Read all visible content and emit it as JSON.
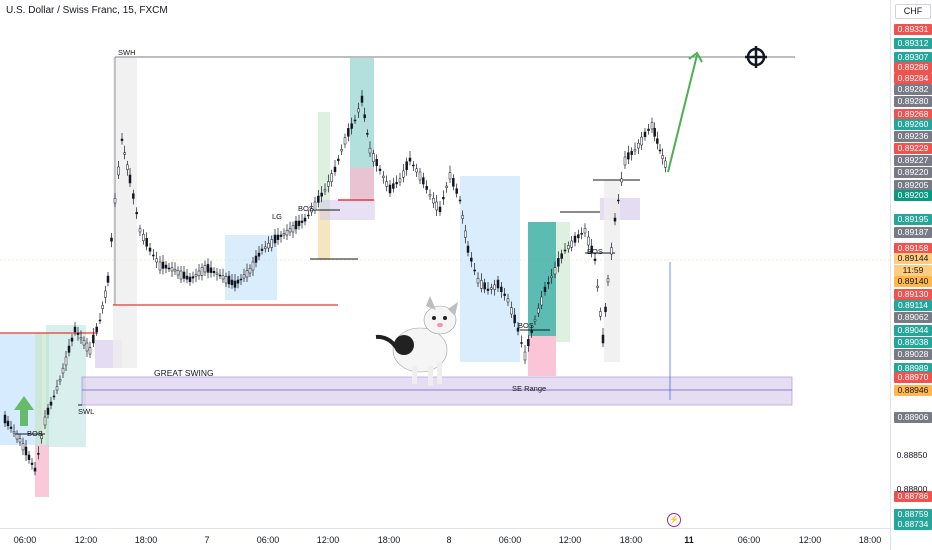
{
  "header": {
    "symbol_title": "U.S. Dollar / Swiss Franc, 15, FXCM"
  },
  "price_axis": {
    "currency_label": "CHF",
    "tags": [
      {
        "value": "0.89331",
        "color": "#ef5350"
      },
      {
        "value": "0.89312",
        "color": "#26a69a"
      },
      {
        "value": "0.89307",
        "color": "#26a69a"
      },
      {
        "value": "0.89286",
        "color": "#ef5350"
      },
      {
        "value": "0.89284",
        "color": "#ef5350"
      },
      {
        "value": "0.89282",
        "color": "#787b86"
      },
      {
        "value": "0.89280",
        "color": "#787b86"
      },
      {
        "value": "0.89268",
        "color": "#ef5350"
      },
      {
        "value": "0.89260",
        "color": "#26a69a"
      },
      {
        "value": "0.89236",
        "color": "#787b86"
      },
      {
        "value": "0.89229",
        "color": "#ef5350"
      },
      {
        "value": "0.89227",
        "color": "#787b86"
      },
      {
        "value": "0.89220",
        "color": "#787b86"
      },
      {
        "value": "0.89205",
        "color": "#787b86"
      },
      {
        "value": "0.89203",
        "color": "#089981"
      },
      {
        "value": "0.89195",
        "color": "#26a69a"
      },
      {
        "value": "0.89187",
        "color": "#787b86"
      },
      {
        "value": "0.89158",
        "color": "#ef5350"
      },
      {
        "value": "0.89144",
        "color": "#ffcc80"
      },
      {
        "value": "11:59",
        "color": "#ffcc80"
      },
      {
        "value": "0.89140",
        "color": "#ffb74d"
      },
      {
        "value": "0.89130",
        "color": "#ef5350"
      },
      {
        "value": "0.89114",
        "color": "#26a69a"
      },
      {
        "value": "0.89062",
        "color": "#787b86"
      },
      {
        "value": "0.89044",
        "color": "#26a69a"
      },
      {
        "value": "0.89038",
        "color": "#26a69a"
      },
      {
        "value": "0.89028",
        "color": "#787b86"
      },
      {
        "value": "0.88989",
        "color": "#26a69a"
      },
      {
        "value": "0.88970",
        "color": "#ef5350"
      },
      {
        "value": "0.88946",
        "color": "#ffb74d"
      },
      {
        "value": "0.88906",
        "color": "#787b86"
      },
      {
        "value": "0.88786",
        "color": "#ef5350"
      },
      {
        "value": "0.88759",
        "color": "#26a69a"
      },
      {
        "value": "0.88734",
        "color": "#26a69a"
      }
    ],
    "ticks": [
      "0.88850",
      "0.88800"
    ]
  },
  "time_axis": {
    "labels": [
      "06:00",
      "12:00",
      "18:00",
      "7",
      "06:00",
      "12:00",
      "18:00",
      "8",
      "06:00",
      "12:00",
      "18:00",
      "11",
      "06:00",
      "12:00",
      "18:00"
    ]
  },
  "annotations": {
    "swh": "SWH",
    "swl": "SWL",
    "lg": "LG",
    "bos_left": "BOS",
    "bos_mid": "BOS",
    "bos_mid2": "BOS",
    "bos_right": "BOS",
    "great_swing": "GREAT SWING",
    "se_range": "SE Range"
  },
  "colors": {
    "bull": "#26a69a",
    "bear": "#ef5350",
    "candle": "#131722",
    "zone_purple": "#d1c4e9",
    "zone_blue": "#bbdefb",
    "zone_green": "#26a69a",
    "zone_red": "#ef9a9a",
    "arrow_green": "#4caf50"
  },
  "icons": {
    "target": "crosshair-target-icon",
    "lightning": "lightning-icon",
    "up_arrow": "up-arrow-icon"
  },
  "image_note_cat": "cat-sticker"
}
